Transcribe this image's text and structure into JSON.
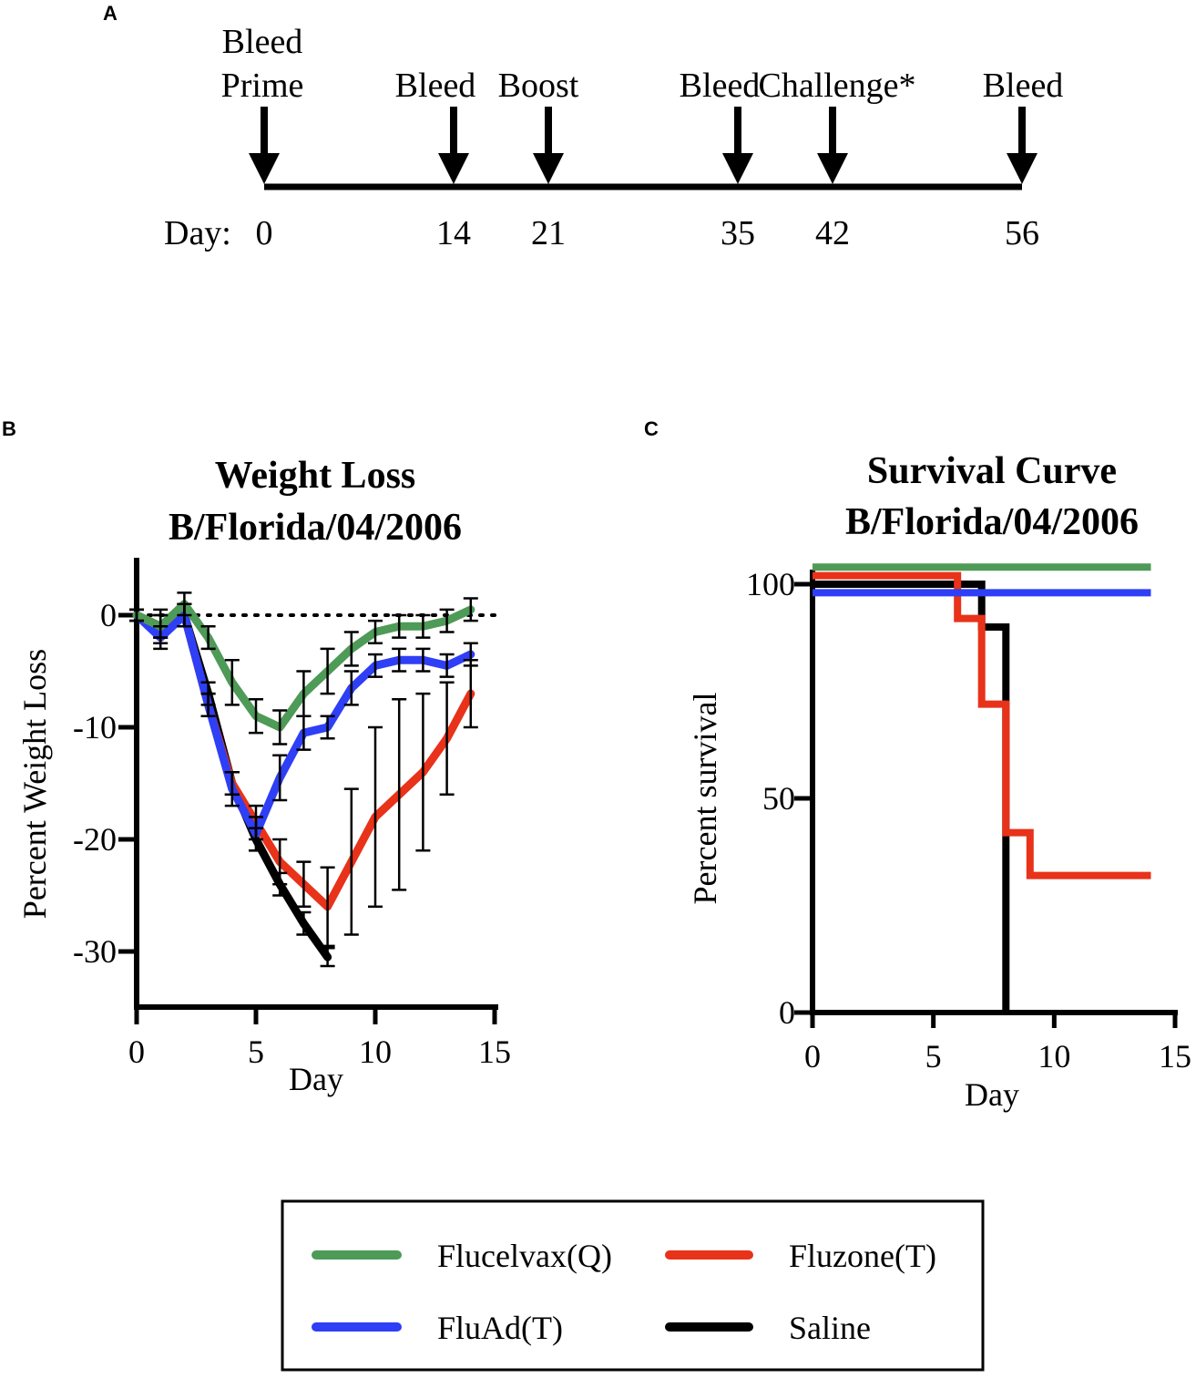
{
  "panels": {
    "a": "A",
    "b": "B",
    "c": "C"
  },
  "timeline": {
    "day_label": "Day:",
    "events": [
      {
        "day": 0,
        "day_text": "0",
        "labels": [
          "Bleed",
          "Prime"
        ]
      },
      {
        "day": 14,
        "day_text": "14",
        "labels": [
          "Bleed"
        ]
      },
      {
        "day": 21,
        "day_text": "21",
        "labels": [
          "Boost"
        ]
      },
      {
        "day": 35,
        "day_text": "35",
        "labels": [
          "Bleed"
        ]
      },
      {
        "day": 42,
        "day_text": "42",
        "labels": [
          "Challenge*"
        ]
      },
      {
        "day": 56,
        "day_text": "56",
        "labels": [
          "Bleed"
        ]
      }
    ]
  },
  "colors": {
    "Flucelvax(Q)": "#4e9a57",
    "Fluzone(T)": "#e8321a",
    "FluAd(T)": "#2e3ff5",
    "Saline": "#000000"
  },
  "legend": {
    "items": [
      {
        "label": "Flucelvax(Q)",
        "color": "#4e9a57"
      },
      {
        "label": "Fluzone(T)",
        "color": "#e8321a"
      },
      {
        "label": "FluAd(T)",
        "color": "#2e3ff5"
      },
      {
        "label": "Saline",
        "color": "#000000"
      }
    ]
  },
  "chart_data": [
    {
      "type": "line",
      "title": [
        "Weight Loss",
        "B/Florida/04/2006"
      ],
      "xlabel": "Day",
      "ylabel": "Percent Weight Loss",
      "xlim": [
        0,
        15
      ],
      "ylim": [
        -35,
        5
      ],
      "xticks": [
        0,
        5,
        10,
        15
      ],
      "yticks": [
        0,
        -10,
        -20,
        -30
      ],
      "reference_line": 0,
      "series": [
        {
          "name": "Flucelvax(Q)",
          "x": [
            0,
            1,
            2,
            3,
            4,
            5,
            6,
            7,
            8,
            9,
            10,
            11,
            12,
            13,
            14
          ],
          "y": [
            0,
            -1,
            1,
            -2,
            -6,
            -9,
            -10,
            -7,
            -5,
            -3,
            -1.5,
            -1,
            -1,
            -0.5,
            0.5
          ],
          "err": [
            0.5,
            1.5,
            1,
            1,
            2,
            1.5,
            1.5,
            2,
            2,
            1.5,
            1,
            1,
            1,
            1,
            1
          ]
        },
        {
          "name": "FluAd(T)",
          "x": [
            0,
            1,
            2,
            3,
            4,
            5,
            6,
            7,
            8,
            9,
            10,
            11,
            12,
            13,
            14
          ],
          "y": [
            0,
            -2,
            0,
            -8,
            -15.5,
            -19.5,
            -14.5,
            -10.5,
            -10,
            -6.5,
            -4.5,
            -4,
            -4,
            -4.5,
            -3.5
          ],
          "err": [
            0.5,
            1,
            1,
            1,
            1.5,
            1.5,
            2,
            1.5,
            1,
            1.5,
            1,
            1,
            1,
            1,
            1
          ]
        },
        {
          "name": "Fluzone(T)",
          "x": [
            0,
            1,
            2,
            3,
            4,
            5,
            6,
            7,
            8,
            9,
            10,
            11,
            12,
            13,
            14
          ],
          "y": [
            0,
            -1,
            0,
            -8,
            -15,
            -18.5,
            -22,
            -24,
            -26,
            -22,
            -18,
            -16,
            -14,
            -11,
            -7
          ],
          "err": [
            0.5,
            1,
            1,
            1,
            1,
            1.5,
            2,
            2,
            3.5,
            6.5,
            8,
            8.5,
            7,
            5,
            3
          ]
        },
        {
          "name": "Saline",
          "x": [
            0,
            1,
            2,
            3,
            4,
            5,
            6,
            7,
            8
          ],
          "y": [
            0,
            -1,
            0,
            -7,
            -15,
            -20,
            -24,
            -27.5,
            -30.5
          ],
          "err": [
            0.5,
            1,
            1,
            1,
            1,
            1,
            1,
            1,
            0.8
          ]
        }
      ]
    },
    {
      "type": "line",
      "step": true,
      "title": [
        "Survival Curve",
        "B/Florida/04/2006"
      ],
      "xlabel": "Day",
      "ylabel": "Percent survival",
      "xlim": [
        0,
        15
      ],
      "ylim": [
        0,
        100
      ],
      "xticks": [
        0,
        5,
        10,
        15
      ],
      "yticks": [
        0,
        50,
        100
      ],
      "series": [
        {
          "name": "Flucelvax(Q)",
          "x": [
            0,
            14
          ],
          "y": [
            104,
            104
          ]
        },
        {
          "name": "FluAd(T)",
          "x": [
            0,
            14
          ],
          "y": [
            98,
            98
          ]
        },
        {
          "name": "Fluzone(T)",
          "x": [
            0,
            6,
            7,
            8,
            9,
            14
          ],
          "y": [
            102,
            92,
            72,
            42,
            32,
            32
          ]
        },
        {
          "name": "Saline",
          "x": [
            0,
            7,
            8,
            8
          ],
          "y": [
            100,
            90,
            0,
            0
          ]
        }
      ]
    }
  ]
}
